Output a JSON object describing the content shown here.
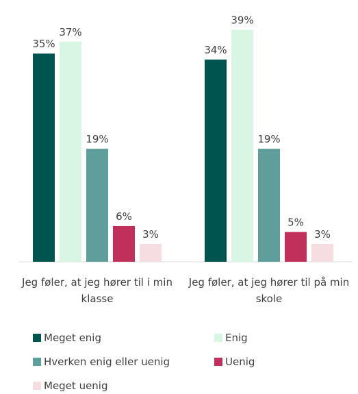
{
  "chart_data": {
    "type": "bar",
    "categories": [
      "Jeg føler, at jeg hører til i min klasse",
      "Jeg føler, at jeg hører til på min skole"
    ],
    "series": [
      {
        "name": "Meget enig",
        "color": "#005450",
        "values": [
          35,
          34
        ],
        "value_labels": [
          "35%",
          "34%"
        ]
      },
      {
        "name": "Enig",
        "color": "#d9f5e3",
        "values": [
          37,
          39
        ],
        "value_labels": [
          "37%",
          "39%"
        ]
      },
      {
        "name": "Hverken enig eller uenig",
        "color": "#5f9e9a",
        "values": [
          19,
          19
        ],
        "value_labels": [
          "19%",
          "19%"
        ]
      },
      {
        "name": "Uenig",
        "color": "#c0305a",
        "values": [
          6,
          5
        ],
        "value_labels": [
          "6%",
          "5%"
        ]
      },
      {
        "name": "Meget uenig",
        "color": "#f5dde2",
        "values": [
          3,
          3
        ],
        "value_labels": [
          "3%",
          "3%"
        ]
      }
    ],
    "legend": "bottom"
  }
}
